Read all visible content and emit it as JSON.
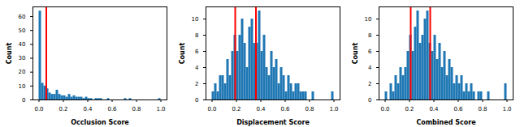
{
  "chart_data": [
    {
      "type": "histogram",
      "x_label": "Occlusion Score",
      "y_label": "Count",
      "color": "#1f77b4",
      "bins": [
        0,
        0.02,
        0.04,
        0.06,
        0.08,
        0.1,
        0.12,
        0.14,
        0.16,
        0.18,
        0.2,
        0.22,
        0.24,
        0.26,
        0.28,
        0.3,
        0.32,
        0.34,
        0.36,
        0.38,
        0.4,
        0.42,
        0.44,
        0.46,
        0.48,
        0.5,
        0.52,
        0.54,
        0.56,
        0.58,
        0.6,
        0.62,
        0.64,
        0.66,
        0.68,
        0.7,
        0.72,
        0.74,
        0.76,
        0.78,
        0.8,
        0.82,
        0.84,
        0.86,
        0.88,
        0.9,
        0.92,
        0.94,
        0.96,
        0.98,
        1
      ],
      "counts": [
        64,
        12,
        10,
        8,
        5,
        4,
        4,
        7,
        4,
        3,
        3,
        2,
        4,
        2,
        3,
        2,
        2,
        2,
        1,
        2,
        1,
        1,
        0,
        1,
        1,
        1,
        0,
        0,
        1,
        0,
        0,
        0,
        0,
        0,
        0,
        1,
        0,
        1,
        0,
        0,
        0,
        0,
        0,
        0,
        0,
        0,
        0,
        0,
        0,
        1
      ],
      "vlines": [
        0.06
      ],
      "xlim": [
        -0.05,
        1.05
      ],
      "ylim": [
        0,
        67
      ],
      "xticks": [
        {
          "value": 0,
          "label": "0.0"
        },
        0.2,
        0.4,
        0.6,
        0.8,
        {
          "value": 1,
          "label": "1.0"
        }
      ],
      "yticks": [
        0,
        10,
        20,
        30,
        40,
        50,
        60
      ]
    },
    {
      "type": "histogram",
      "x_label": "Displacement Score",
      "y_label": "Count",
      "color": "#1f77b4",
      "bins": [
        0,
        0.02,
        0.04,
        0.06,
        0.08,
        0.1,
        0.12,
        0.14,
        0.16,
        0.18,
        0.2,
        0.22,
        0.24,
        0.26,
        0.28,
        0.3,
        0.32,
        0.34,
        0.36,
        0.38,
        0.4,
        0.42,
        0.44,
        0.46,
        0.48,
        0.5,
        0.52,
        0.54,
        0.56,
        0.58,
        0.6,
        0.62,
        0.64,
        0.66,
        0.68,
        0.7,
        0.72,
        0.74,
        0.76,
        0.78,
        0.8,
        0.82,
        0.84,
        0.86,
        0.88,
        0.9,
        0.92,
        0.94,
        0.96,
        0.98,
        1
      ],
      "counts": [
        1,
        2,
        1,
        3,
        3,
        2,
        5,
        3,
        6,
        8,
        6,
        8,
        10,
        7,
        4,
        9,
        10,
        7,
        7,
        11,
        6,
        8,
        4,
        3,
        6,
        4,
        5,
        2,
        4,
        3,
        1,
        3,
        2,
        1,
        2,
        2,
        1,
        1,
        1,
        0,
        0,
        1,
        0,
        0,
        0,
        0,
        0,
        0,
        0,
        1
      ],
      "vlines": [
        0.19,
        0.36
      ],
      "xlim": [
        -0.05,
        1.05
      ],
      "ylim": [
        0,
        11.5
      ],
      "xticks": [
        {
          "value": 0,
          "label": "0.0"
        },
        0.2,
        0.4,
        0.6,
        0.8,
        {
          "value": 1,
          "label": "1.0"
        }
      ],
      "yticks": [
        0,
        2,
        4,
        6,
        8,
        10
      ]
    },
    {
      "type": "histogram",
      "x_label": "Combined Score",
      "y_label": "Count",
      "color": "#1f77b4",
      "bins": [
        0,
        0.02,
        0.04,
        0.06,
        0.08,
        0.1,
        0.12,
        0.14,
        0.16,
        0.18,
        0.2,
        0.22,
        0.24,
        0.26,
        0.28,
        0.3,
        0.32,
        0.34,
        0.36,
        0.38,
        0.4,
        0.42,
        0.44,
        0.46,
        0.48,
        0.5,
        0.52,
        0.54,
        0.56,
        0.58,
        0.6,
        0.62,
        0.64,
        0.66,
        0.68,
        0.7,
        0.72,
        0.74,
        0.76,
        0.78,
        0.8,
        0.82,
        0.84,
        0.86,
        0.88,
        0.9,
        0.92,
        0.94,
        0.96,
        0.98,
        1
      ],
      "counts": [
        1,
        0,
        2,
        1,
        3,
        2,
        4,
        3,
        4,
        6,
        8,
        6,
        9,
        11,
        7,
        8,
        10,
        11,
        7,
        6,
        8,
        5,
        7,
        4,
        6,
        3,
        5,
        4,
        2,
        3,
        2,
        3,
        1,
        2,
        1,
        2,
        1,
        0,
        1,
        1,
        0,
        0,
        1,
        0,
        0,
        0,
        0,
        0,
        0,
        2
      ],
      "vlines": [
        0.21,
        0.37
      ],
      "xlim": [
        -0.05,
        1.05
      ],
      "ylim": [
        0,
        11.5
      ],
      "xticks": [
        {
          "value": 0,
          "label": "0.0"
        },
        0.2,
        0.4,
        0.6,
        0.8,
        {
          "value": 1,
          "label": "1.0"
        }
      ],
      "yticks": [
        0,
        2,
        4,
        6,
        8,
        10
      ]
    }
  ]
}
